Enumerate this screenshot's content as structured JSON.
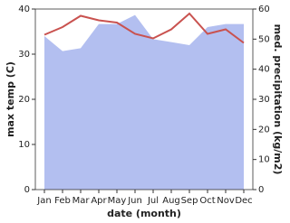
{
  "chart_data": {
    "type": "area-line",
    "x_label": "date (month)",
    "y_label": "max temp (C)",
    "y2_label": "med. precipitation (kg/m2)",
    "categories": [
      "Jan",
      "Feb",
      "Mar",
      "Apr",
      "May",
      "Jun",
      "Jul",
      "Aug",
      "Sep",
      "Oct",
      "Nov",
      "Dec"
    ],
    "ylim": [
      0,
      40
    ],
    "yticks": [
      0,
      10,
      20,
      30,
      40
    ],
    "y2lim": [
      0,
      60
    ],
    "y2ticks": [
      0,
      10,
      20,
      30,
      40,
      50,
      60
    ],
    "series": [
      {
        "name": "med. precipitation",
        "color": "#b3bff0",
        "axis": "y2",
        "kind": "area",
        "values": [
          51,
          46,
          47,
          55,
          55,
          58,
          50,
          49,
          48,
          54,
          55,
          55
        ]
      },
      {
        "name": "max temp",
        "color": "#c9524f",
        "axis": "y",
        "kind": "line",
        "values": [
          34.3,
          36,
          38.5,
          37.5,
          37,
          34.5,
          33.5,
          35.5,
          39,
          34.5,
          35.5,
          32.5
        ]
      }
    ]
  }
}
